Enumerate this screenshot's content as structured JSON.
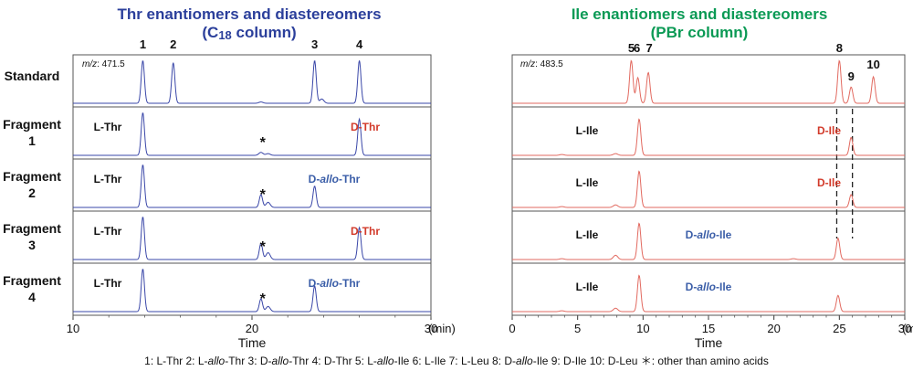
{
  "chart_data": [
    {
      "type": "line",
      "title": "Thr enantiomers and diastereomers",
      "subtitle": "(C18 column)",
      "column_label": {
        "prefix": "(C",
        "sub": "18",
        "suffix": " column)"
      },
      "xlabel": "Time",
      "x_unit": "(min)",
      "xlim": [
        10,
        30
      ],
      "x_ticks": [
        "10",
        "20",
        "30"
      ],
      "mz": "m/z: 471.5",
      "line_color": "#3a47a8",
      "peak_numbers": [
        {
          "label": "1",
          "time": 13.9
        },
        {
          "label": "2",
          "time": 15.6
        },
        {
          "label": "3",
          "time": 23.5
        },
        {
          "label": "4",
          "time": 26.0
        }
      ],
      "series": [
        {
          "name": "Standard",
          "peaks": [
            [
              13.9,
              1.0
            ],
            [
              15.6,
              0.95
            ],
            [
              20.5,
              0.03
            ],
            [
              23.5,
              1.0
            ],
            [
              23.9,
              0.1
            ],
            [
              26.0,
              1.0
            ]
          ],
          "annotations": []
        },
        {
          "name": "Fragment 1",
          "peaks": [
            [
              13.9,
              1.0
            ],
            [
              20.5,
              0.07
            ],
            [
              20.9,
              0.04
            ],
            [
              26.0,
              0.85
            ]
          ],
          "annotations": [
            {
              "text": "L-Thr",
              "color": "black"
            },
            {
              "text": "D-Thr",
              "color": "red"
            },
            {
              "text": "*",
              "color": "star",
              "time": 20.5
            }
          ]
        },
        {
          "name": "Fragment 2",
          "peaks": [
            [
              13.9,
              1.0
            ],
            [
              20.5,
              0.3
            ],
            [
              20.9,
              0.12
            ],
            [
              23.5,
              0.5
            ]
          ],
          "annotations": [
            {
              "text": "L-Thr",
              "color": "black"
            },
            {
              "text": "D-allo-Thr",
              "color": "blue"
            },
            {
              "text": "*",
              "color": "star",
              "time": 20.5
            }
          ]
        },
        {
          "name": "Fragment 3",
          "peaks": [
            [
              13.9,
              1.0
            ],
            [
              20.5,
              0.38
            ],
            [
              20.9,
              0.16
            ],
            [
              26.0,
              0.75
            ]
          ],
          "annotations": [
            {
              "text": "L-Thr",
              "color": "black"
            },
            {
              "text": "D-Thr",
              "color": "red"
            },
            {
              "text": "*",
              "color": "star",
              "time": 20.5
            }
          ]
        },
        {
          "name": "Fragment 4",
          "peaks": [
            [
              13.9,
              1.0
            ],
            [
              20.5,
              0.3
            ],
            [
              20.9,
              0.12
            ],
            [
              23.5,
              0.6
            ]
          ],
          "annotations": [
            {
              "text": "L-Thr",
              "color": "black"
            },
            {
              "text": "D-allo-Thr",
              "color": "blue"
            },
            {
              "text": "*",
              "color": "star",
              "time": 20.5
            }
          ]
        }
      ]
    },
    {
      "type": "line",
      "title": "Ile enantiomers and diastereomers",
      "subtitle": "(PBr column)",
      "xlabel": "Time",
      "x_unit": "(min)",
      "xlim": [
        0,
        30
      ],
      "x_ticks": [
        "0",
        "5",
        "10",
        "15",
        "20",
        "25",
        "30"
      ],
      "mz": "m/z: 483.5",
      "line_color": "#e26a60",
      "peak_numbers": [
        {
          "label": "5",
          "time": 9.1
        },
        {
          "label": "6",
          "time": 9.6
        },
        {
          "label": "7",
          "time": 10.4
        },
        {
          "label": "8",
          "time": 25.0
        },
        {
          "label": "9",
          "time": 25.9
        },
        {
          "label": "10",
          "time": 27.6
        }
      ],
      "dashed_lines": [
        24.8,
        26.0
      ],
      "series": [
        {
          "name": "Standard",
          "peaks": [
            [
              9.1,
              1.0
            ],
            [
              9.6,
              0.6
            ],
            [
              10.4,
              0.72
            ],
            [
              25.0,
              1.0
            ],
            [
              25.9,
              0.38
            ],
            [
              27.6,
              0.62
            ]
          ],
          "annotations": []
        },
        {
          "name": "Fragment 1",
          "peaks": [
            [
              3.8,
              0.02
            ],
            [
              7.9,
              0.04
            ],
            [
              9.7,
              0.85
            ],
            [
              25.9,
              0.42
            ]
          ],
          "annotations": [
            {
              "text": "L-Ile",
              "color": "black"
            },
            {
              "text": "D-Ile",
              "color": "red"
            }
          ]
        },
        {
          "name": "Fragment 2",
          "peaks": [
            [
              3.8,
              0.02
            ],
            [
              7.9,
              0.06
            ],
            [
              9.7,
              0.85
            ],
            [
              25.9,
              0.3
            ]
          ],
          "annotations": [
            {
              "text": "L-Ile",
              "color": "black"
            },
            {
              "text": "D-Ile",
              "color": "red"
            }
          ]
        },
        {
          "name": "Fragment 3",
          "peaks": [
            [
              3.8,
              0.02
            ],
            [
              7.9,
              0.1
            ],
            [
              9.7,
              0.85
            ],
            [
              21.5,
              0.02
            ],
            [
              24.9,
              0.5
            ]
          ],
          "annotations": [
            {
              "text": "L-Ile",
              "color": "black"
            },
            {
              "text": "D-allo-Ile",
              "color": "blue"
            }
          ]
        },
        {
          "name": "Fragment 4",
          "peaks": [
            [
              3.8,
              0.02
            ],
            [
              7.9,
              0.08
            ],
            [
              9.7,
              0.85
            ],
            [
              24.9,
              0.38
            ]
          ],
          "annotations": [
            {
              "text": "L-Ile",
              "color": "black"
            },
            {
              "text": "D-allo-Ile",
              "color": "blue"
            }
          ]
        }
      ]
    }
  ],
  "row_labels": [
    {
      "line1": "Standard",
      "line2": ""
    },
    {
      "line1": "Fragment",
      "line2": "1"
    },
    {
      "line1": "Fragment",
      "line2": "2"
    },
    {
      "line1": "Fragment",
      "line2": "3"
    },
    {
      "line1": "Fragment",
      "line2": "4"
    }
  ],
  "legend_parts": [
    {
      "t": "1: L-Thr  2: L-",
      "i": false
    },
    {
      "t": "allo",
      "i": true
    },
    {
      "t": "-Thr  3: D-",
      "i": false
    },
    {
      "t": "allo",
      "i": true
    },
    {
      "t": "-Thr  4: D-Thr  5: L-",
      "i": false
    },
    {
      "t": "allo",
      "i": true
    },
    {
      "t": "-Ile  6: L-Ile  7: L-Leu  8: D-",
      "i": false
    },
    {
      "t": "allo",
      "i": true
    },
    {
      "t": "-Ile  9: D-Ile  10: D-Leu  ＊: other than amino acids",
      "i": false
    }
  ],
  "legend_text": "1: L-Thr  2: L-allo-Thr  3: D-allo-Thr  4: D-Thr  5: L-allo-Ile  6: L-Ile  7: L-Leu  8: D-allo-Ile  9: D-Ile  10: D-Leu  ＊: other than amino acids"
}
